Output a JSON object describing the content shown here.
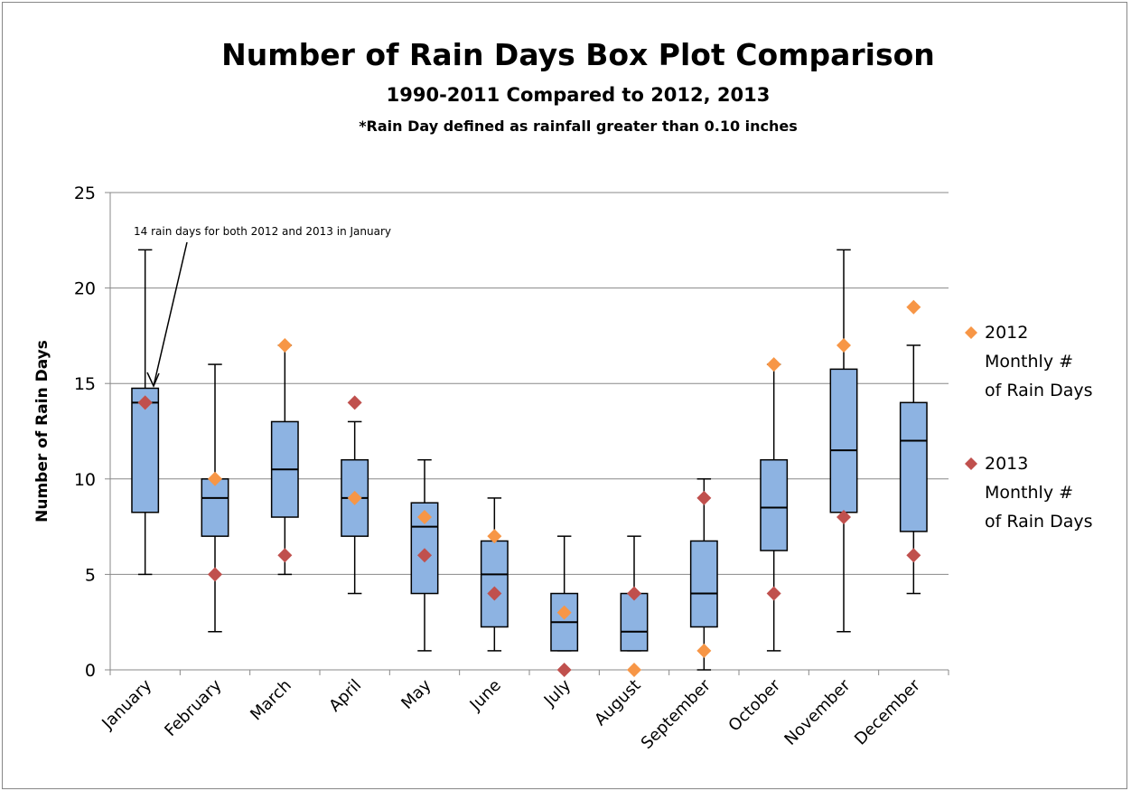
{
  "chart_data": {
    "type": "box",
    "title": "Number of Rain Days Box Plot Comparison",
    "subtitle": "1990-2011 Compared to 2012, 2013",
    "note": "*Rain Day defined as rainfall greater than 0.10 inches",
    "y_label": "Number of Rain Days",
    "annotation": "14 rain days for both 2012 and 2013 in January",
    "categories": [
      "January",
      "February",
      "March",
      "April",
      "May",
      "June",
      "July",
      "August",
      "September",
      "October",
      "November",
      "December"
    ],
    "box_color": "#8db3e2",
    "boxes": [
      {
        "min": 5,
        "q1": 8.25,
        "median": 14,
        "q3": 14.75,
        "max": 22
      },
      {
        "min": 2,
        "q1": 7,
        "median": 9,
        "q3": 10,
        "max": 16
      },
      {
        "min": 5,
        "q1": 8,
        "median": 10.5,
        "q3": 13,
        "max": 17
      },
      {
        "min": 4,
        "q1": 7,
        "median": 9,
        "q3": 11,
        "max": 13
      },
      {
        "min": 1,
        "q1": 4,
        "median": 7.5,
        "q3": 8.75,
        "max": 11
      },
      {
        "min": 1,
        "q1": 2.25,
        "median": 5,
        "q3": 6.75,
        "max": 9
      },
      {
        "min": 1,
        "q1": 1,
        "median": 2.5,
        "q3": 4,
        "max": 7
      },
      {
        "min": 1,
        "q1": 1,
        "median": 2,
        "q3": 4,
        "max": 7
      },
      {
        "min": 0,
        "q1": 2.25,
        "median": 4,
        "q3": 6.75,
        "max": 10
      },
      {
        "min": 1,
        "q1": 6.25,
        "median": 8.5,
        "q3": 11,
        "max": 16
      },
      {
        "min": 2,
        "q1": 8.25,
        "median": 11.5,
        "q3": 15.75,
        "max": 22
      },
      {
        "min": 4,
        "q1": 7.25,
        "median": 12,
        "q3": 14,
        "max": 17
      }
    ],
    "series": [
      {
        "name": "2012 Monthly # of Rain Days",
        "color": "#f79646",
        "values": [
          14,
          10,
          17,
          9,
          8,
          7,
          3,
          0,
          1,
          16,
          17,
          19
        ]
      },
      {
        "name": "2013 Monthly # of Rain Days",
        "color": "#c0504d",
        "values": [
          14,
          5,
          6,
          14,
          6,
          4,
          0,
          4,
          9,
          4,
          8,
          6
        ]
      }
    ],
    "ylim": [
      0,
      25
    ],
    "yticks": [
      0,
      5,
      10,
      15,
      20,
      25
    ],
    "grid": true
  }
}
